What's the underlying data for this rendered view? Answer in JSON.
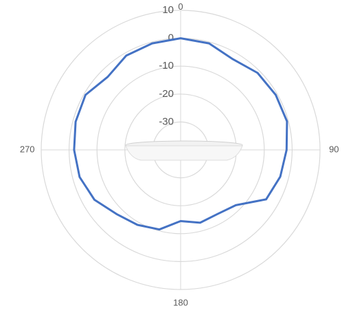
{
  "chart_data": {
    "type": "polar",
    "theta": [
      0,
      15,
      30,
      45,
      60,
      75,
      90,
      105,
      120,
      135,
      150,
      165,
      180,
      195,
      210,
      225,
      240,
      255,
      270,
      285,
      300,
      315,
      330,
      345
    ],
    "values": [
      0,
      -0.5,
      -2.5,
      -1,
      -0.6,
      -0.5,
      -2,
      -3,
      -4.6,
      -12,
      -13.5,
      -13,
      -14.5,
      -10.5,
      -9,
      -7.5,
      -4.3,
      -2.5,
      -1.8,
      -1,
      -0.6,
      -3,
      -1,
      -0.5
    ],
    "color": "#4472c4",
    "rlim": [
      -40,
      10
    ],
    "rticks": [
      -30,
      -20,
      -10,
      0,
      10
    ],
    "thetaticks": [
      0,
      90,
      180,
      270
    ],
    "grid": true
  }
}
